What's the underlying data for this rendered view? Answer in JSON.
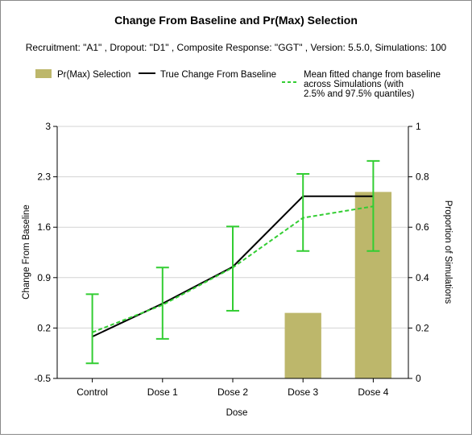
{
  "chart_data": {
    "type": "bar+line",
    "title": "Change From Baseline and Pr(Max) Selection",
    "subtitle": "Recruitment: \"A1\" , Dropout: \"D1\" , Composite Response: \"GGT\" , Version: 5.5.0, Simulations: 100",
    "xlabel": "Dose",
    "ylabel_left": "Change From Baseline",
    "ylabel_right": "Proportion of Simulations",
    "categories": [
      "Control",
      "Dose 1",
      "Dose 2",
      "Dose 3",
      "Dose 4"
    ],
    "y_left": {
      "lim": [
        -0.5,
        3
      ],
      "ticks": [
        "3",
        "2.3",
        "1.6",
        "0.9",
        "0.2",
        "-0.5"
      ]
    },
    "y_right": {
      "lim": [
        0,
        1
      ],
      "ticks": [
        "1",
        "0.8",
        "0.6",
        "0.4",
        "0.2",
        "0"
      ]
    },
    "grid": true,
    "legend_position": "top",
    "legend": [
      {
        "label": "Pr(Max) Selection"
      },
      {
        "label": "True Change From Baseline"
      },
      {
        "label_lines": [
          "Mean fitted change from baseline",
          "across Simulations (with",
          "2.5% and 97.5% quantiles)"
        ]
      }
    ],
    "series": [
      {
        "name": "Pr(Max) Selection",
        "kind": "bar",
        "axis": "right",
        "color": "#bdb76b",
        "values": [
          0,
          0,
          0,
          0.26,
          0.74
        ]
      },
      {
        "name": "True Change From Baseline",
        "kind": "line",
        "axis": "left",
        "color": "#000000",
        "values": [
          0.08,
          0.54,
          1.05,
          2.03,
          2.03
        ]
      },
      {
        "name": "Mean fitted change from baseline across Simulations (with 2.5% and 97.5% quantiles)",
        "kind": "line-dashed-errorbar",
        "axis": "left",
        "color": "#32cd32",
        "values": [
          0.14,
          0.52,
          1.04,
          1.73,
          1.89
        ],
        "lower": [
          -0.29,
          0.05,
          0.44,
          1.27,
          1.27
        ],
        "upper": [
          0.67,
          1.04,
          1.61,
          2.34,
          2.52
        ]
      }
    ]
  }
}
